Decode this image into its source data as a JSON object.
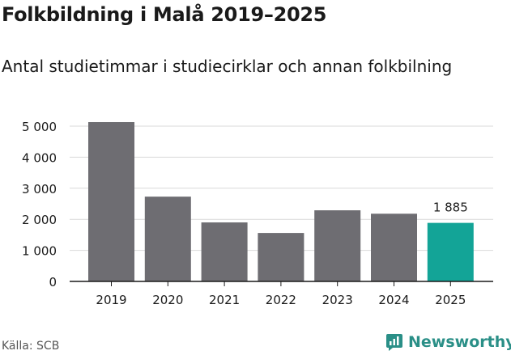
{
  "header": {
    "title": "Folkbildning i Malå 2019–2025",
    "subtitle": "Antal studietimmar i studiecirklar och annan folkbilning"
  },
  "footer": {
    "source": "Källa: SCB",
    "brand": "Newsworthy"
  },
  "colors": {
    "bar": "#6e6d72",
    "highlight": "#13a497",
    "grid": "#d9d9d9",
    "axis": "#1a1a1a",
    "brand": "#2a8f87"
  },
  "chart_data": {
    "type": "bar",
    "title": "Folkbildning i Malå 2019–2025",
    "subtitle": "Antal studietimmar i studiecirklar och annan folkbilning",
    "xlabel": "",
    "ylabel": "",
    "categories": [
      "2019",
      "2020",
      "2021",
      "2022",
      "2023",
      "2024",
      "2025"
    ],
    "values": [
      5130,
      2730,
      1900,
      1560,
      2290,
      2180,
      1885
    ],
    "highlight_index": 6,
    "data_labels": [
      {
        "index": 6,
        "text": "1 885"
      }
    ],
    "ylim": [
      0,
      5000
    ],
    "yticks": [
      0,
      1000,
      2000,
      3000,
      4000,
      5000
    ],
    "ytick_labels": [
      "0",
      "1 000",
      "2 000",
      "3 000",
      "4 000",
      "5 000"
    ],
    "grid": true
  }
}
